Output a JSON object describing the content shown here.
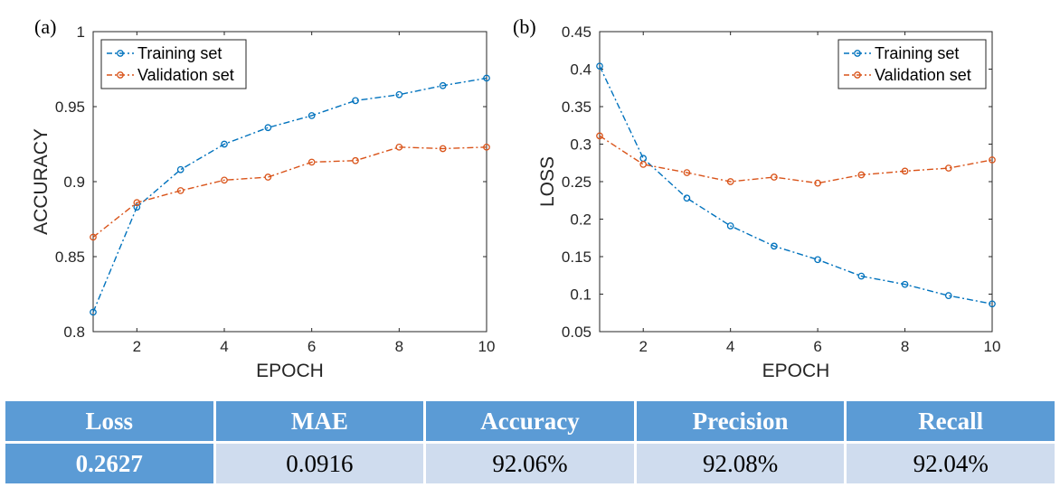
{
  "colors": {
    "training": "#0072BD",
    "validation": "#D95319",
    "table_header": "#5b9bd5",
    "table_cell": "#cfdcee"
  },
  "chart_data": [
    {
      "type": "line",
      "panel_label": "(a)",
      "xlabel": "EPOCH",
      "ylabel": "ACCURACY",
      "xlim": [
        1,
        10
      ],
      "ylim": [
        0.8,
        1
      ],
      "xticks": [
        2,
        4,
        6,
        8,
        10
      ],
      "yticks": [
        0.8,
        0.85,
        0.9,
        0.95,
        1
      ],
      "ytick_labels": [
        "0.8",
        "0.85",
        "0.9",
        "0.95",
        "1"
      ],
      "legend_position": "top-left",
      "x": [
        1,
        2,
        3,
        4,
        5,
        6,
        7,
        8,
        9,
        10
      ],
      "series": [
        {
          "name": "Training set",
          "color": "#0072BD",
          "values": [
            0.813,
            0.883,
            0.908,
            0.925,
            0.936,
            0.944,
            0.954,
            0.958,
            0.964,
            0.969
          ]
        },
        {
          "name": "Validation set",
          "color": "#D95319",
          "values": [
            0.863,
            0.886,
            0.894,
            0.901,
            0.903,
            0.913,
            0.914,
            0.923,
            0.922,
            0.923
          ]
        }
      ]
    },
    {
      "type": "line",
      "panel_label": "(b)",
      "xlabel": "EPOCH",
      "ylabel": "LOSS",
      "xlim": [
        1,
        10
      ],
      "ylim": [
        0.05,
        0.45
      ],
      "xticks": [
        2,
        4,
        6,
        8,
        10
      ],
      "yticks": [
        0.05,
        0.1,
        0.15,
        0.2,
        0.25,
        0.3,
        0.35,
        0.4,
        0.45
      ],
      "ytick_labels": [
        "0.05",
        "0.1",
        "0.15",
        "0.2",
        "0.25",
        "0.3",
        "0.35",
        "0.4",
        "0.45"
      ],
      "legend_position": "top-right",
      "x": [
        1,
        2,
        3,
        4,
        5,
        6,
        7,
        8,
        9,
        10
      ],
      "series": [
        {
          "name": "Training set",
          "color": "#0072BD",
          "values": [
            0.404,
            0.281,
            0.228,
            0.191,
            0.164,
            0.146,
            0.124,
            0.113,
            0.098,
            0.087
          ]
        },
        {
          "name": "Validation set",
          "color": "#D95319",
          "values": [
            0.311,
            0.273,
            0.262,
            0.25,
            0.256,
            0.248,
            0.259,
            0.264,
            0.268,
            0.279
          ]
        }
      ]
    }
  ],
  "metrics_table": {
    "headers": [
      "Loss",
      "MAE",
      "Accuracy",
      "Precision",
      "Recall"
    ],
    "values": [
      "0.2627",
      "0.0916",
      "92.06%",
      "92.08%",
      "92.04%"
    ]
  }
}
